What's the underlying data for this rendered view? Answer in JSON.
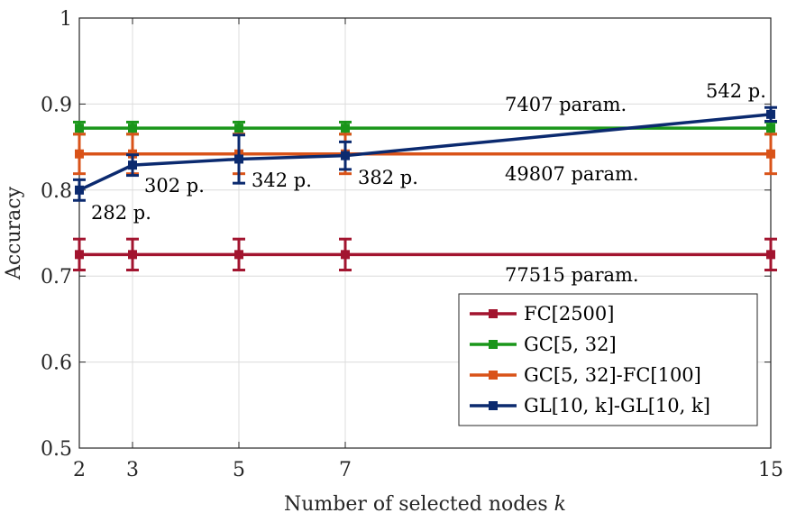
{
  "chart_data": {
    "type": "line",
    "title": "",
    "xlabel": "Number of selected nodes",
    "xlabel_var": "k",
    "ylabel": "Accuracy",
    "xlim": [
      2,
      15
    ],
    "ylim": [
      0.5,
      1.0
    ],
    "xticks": [
      2,
      3,
      5,
      7,
      15
    ],
    "yticks": [
      0.5,
      0.6,
      0.7,
      0.8,
      0.9,
      1.0
    ],
    "ytick_labels": [
      "0.5",
      "0.6",
      "0.7",
      "0.8",
      "0.9",
      "1"
    ],
    "grid": true,
    "legend_position": "bottom-right",
    "x": [
      2,
      3,
      5,
      7,
      15
    ],
    "series": [
      {
        "name": "FC[2500]",
        "legend_label": "FC[2500]",
        "color": "#a2142f",
        "values": [
          0.725,
          0.725,
          0.725,
          0.725,
          0.725
        ],
        "errors": [
          0.018,
          0.018,
          0.018,
          0.018,
          0.018
        ]
      },
      {
        "name": "GC[5,32]",
        "legend_label": "GC[5, 32]",
        "color": "#1a961a",
        "values": [
          0.872,
          0.872,
          0.872,
          0.872,
          0.872
        ],
        "errors": [
          0.007,
          0.007,
          0.007,
          0.007,
          0.007
        ]
      },
      {
        "name": "GC[5,32]-FC[100]",
        "legend_label": "GC[5, 32]-FC[100]",
        "color": "#d95319",
        "values": [
          0.842,
          0.842,
          0.842,
          0.842,
          0.842
        ],
        "errors": [
          0.023,
          0.023,
          0.023,
          0.023,
          0.023
        ]
      },
      {
        "name": "GL[10,k]-GL[10,k]",
        "legend_label": "GL[10, k]-GL[10, k]",
        "color": "#0b2a6f",
        "values": [
          0.8,
          0.829,
          0.836,
          0.84,
          0.888
        ],
        "errors": [
          0.012,
          0.012,
          0.028,
          0.016,
          0.008
        ]
      }
    ],
    "annotations": [
      {
        "text": "282 p.",
        "x": 2,
        "y": 0.8
      },
      {
        "text": "302 p.",
        "x": 3,
        "y": 0.829
      },
      {
        "text": "342 p.",
        "x": 5,
        "y": 0.836
      },
      {
        "text": "382 p.",
        "x": 7,
        "y": 0.84
      },
      {
        "text": "542 p.",
        "x": 15,
        "y": 0.888
      },
      {
        "text": "7407 param.",
        "series": "GC[5,32]"
      },
      {
        "text": "49807 param.",
        "series": "GC[5,32]-FC[100]"
      },
      {
        "text": "77515 param.",
        "series": "FC[2500]"
      }
    ]
  }
}
